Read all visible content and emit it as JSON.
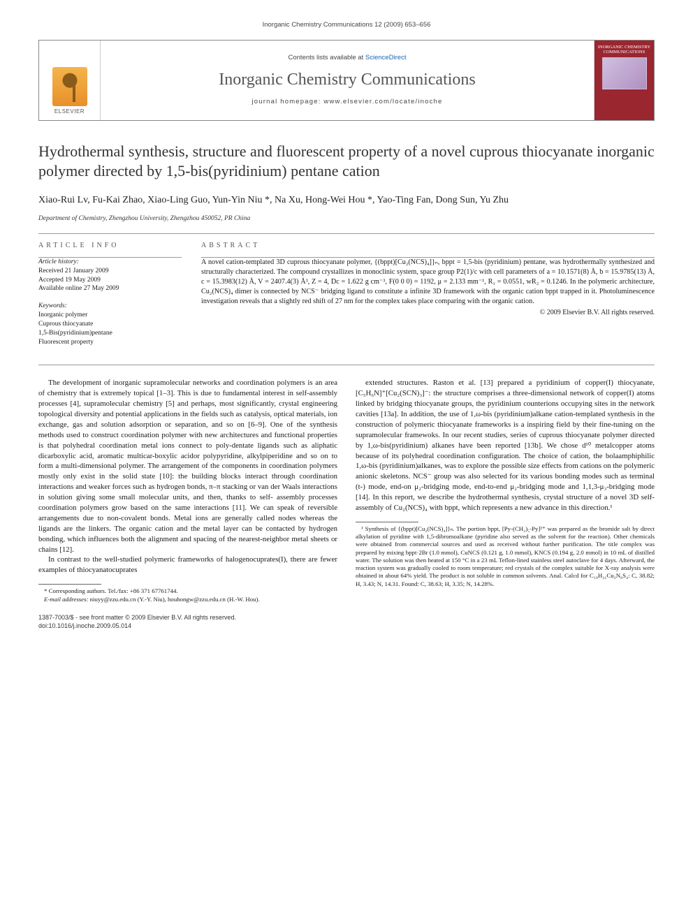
{
  "running_header": "Inorganic Chemistry Communications 12 (2009) 653–656",
  "banner": {
    "publisher": "ELSEVIER",
    "contents_prefix": "Contents lists available at ",
    "contents_link": "ScienceDirect",
    "journal": "Inorganic Chemistry Communications",
    "homepage_label": "journal homepage: www.elsevier.com/locate/inoche",
    "cover_text": "INORGANIC CHEMISTRY COMMUNICATIONS"
  },
  "title": "Hydrothermal synthesis, structure and fluorescent property of a novel cuprous thiocyanate inorganic polymer directed by 1,5-bis(pyridinium) pentane cation",
  "authors_line": "Xiao-Rui Lv, Fu-Kai Zhao, Xiao-Ling Guo, Yun-Yin Niu *, Na Xu, Hong-Wei Hou *, Yao-Ting Fan, Dong Sun, Yu Zhu",
  "affiliation": "Department of Chemistry, Zhengzhou University, Zhengzhou 450052, PR China",
  "article_info": {
    "heading": "ARTICLE INFO",
    "history_label": "Article history:",
    "received": "Received 21 January 2009",
    "accepted": "Accepted 19 May 2009",
    "online": "Available online 27 May 2009",
    "keywords_label": "Keywords:",
    "keywords": [
      "Inorganic polymer",
      "Cuprous thiocyanate",
      "1,5-Bis(pyridinium)pentane",
      "Fluorescent property"
    ]
  },
  "abstract": {
    "heading": "ABSTRACT",
    "text": "A novel cation-templated 3D cuprous thiocyanate polymer, {(bppt)[Cu₂(NCS)₄]}ₙ, bppt = 1,5-bis (pyridinium) pentane, was hydrothermally synthesized and structurally characterized. The compound crystallizes in monoclinic system, space group P2(1)/c with cell parameters of a = 10.1571(8) Å, b = 15.9785(13) Å, c = 15.3983(12) Å, V = 2407.4(3) Å³, Z = 4, Dc = 1.622 g cm⁻³, F(0 0 0) = 1192, μ = 2.133 mm⁻¹, R₁ = 0.0551, wR₂ = 0.1246. In the polymeric architecture, Cu₂(NCS)₄ dimer is connected by NCS⁻ bridging ligand to constitute a infinite 3D framework with the organic cation bppt trapped in it. Photoluminescence investigation reveals that a slightly red shift of 27 nm for the complex takes place comparing with the organic cation.",
    "copyright": "© 2009 Elsevier B.V. All rights reserved."
  },
  "body": {
    "p1": "The development of inorganic supramolecular networks and coordination polymers is an area of chemistry that is extremely topical [1–3]. This is due to fundamental interest in self-assembly processes [4], supramolecular chemistry [5] and perhaps, most significantly, crystal engineering topological diversity and potential applications in the fields such as catalysis, optical materials, ion exchange, gas and solution adsorption or separation, and so on [6–9]. One of the synthesis methods used to construct coordination polymer with new architectures and functional properties is that polyhedral coordination metal ions connect to poly-dentate ligands such as aliphatic dicarboxylic acid, aromatic multicar-boxylic acidor polypyridine, alkylpiperidine and so on to form a multi-dimensional polymer. The arrangement of the components in coordination polymers mostly only exist in the solid state [10]: the building blocks interact through coordination interactions and weaker forces such as hydrogen bonds, π–π stacking or van der Waals interactions in solution giving some small molecular units, and then, thanks to self- assembly processes coordination polymers grow based on the same interactions [11]. We can speak of reversible arrangements due to non-covalent bonds. Metal ions are generally called nodes whereas the ligands are the linkers. The organic cation and the metal layer can be contacted by hydrogen bonding, which influences both the alignment and spacing of the nearest-neighbor metal sheets or chains [12].",
    "p2": "In contrast to the well-studied polymeric frameworks of halogenocuprates(I), there are fewer examples of thiocyanatocuprates",
    "p3": "extended structures. Raston et al. [13] prepared a pyridinium of copper(I) thiocyanate, [C₅H₆N]⁺[Cu₂(SCN)₃]⁻: the structure comprises a three-dimensional network of copper(I) atoms linked by bridging thiocyanate groups, the pyridinium counterions occupying sites in the network cavities [13a]. In addition, the use of 1,ω-bis (pyridinium)alkane cation-templated synthesis in the construction of polymeric thiocyanate frameworks is a inspiring field by their fine-tuning on the supramolecular framewoks. In our recent studies, series of cuprous thiocyanate polymer directed by 1,ω-bis(pyridinium) alkanes have been reported [13b]. We chose d¹⁰ metalcopper atoms because of its polyhedral coordination configuration. The choice of cation, the bolaamphiphilic 1,ω-bis (pyridinium)alkanes, was to explore the possible size effects from cations on the polymeric anionic skeletons. NCS⁻ group was also selected for its various bonding modes such as terminal (t-) mode, end-on μ₂-bridging mode, end-to-end μ₂-bridging mode and 1,1,3-μ₃-bridging mode [14]. In this report, we describe the hydrothermal synthesis, crystal structure of a novel 3D self-assembly of Cu₂(NCS)₄ with bppt, which represents a new advance in this direction.¹"
  },
  "footnotes": {
    "corr_line": "* Corresponding authors. Tel./fax: +86 371 67761744.",
    "email_label": "E-mail addresses:",
    "email_text": " niuyy@zzu.edu.cn (Y.-Y. Niu), houhongw@zzu.edu.cn (H.-W. Hou).",
    "fn1": "¹ Synthesis of {(bppt)[Cu₂(NCS)₄]}ₙ. The portion bppt, [Py-(CH₂)₅-Py]²⁺ was prepared as the bromide salt by direct alkylation of pyridine with 1,5-dibromoalkane (pyridine also served as the solvent for the reaction). Other chemicals were obtained from commercial sources and used as received without further purification. The title complex was prepared by mixing bppt·2Br (1.0 mmol), CuNCS (0.121 g, 1.0 mmol), KNCS (0.194 g, 2.0 mmol) in 10 mL of distilled water. The solution was then heated at 150 °C in a 23 mL Teflon-lined stainless steel autoclave for 4 days. Afterward, the reaction system was gradually cooled to room temperature; red crystals of the complex suitable for X-ray analysis were obtained in about 64% yield. The product is not soluble in common solvents. Anal. Calcd for C₁₉H₂₁Cu₂N₆S₄: C, 38.82; H, 3.43; N, 14.31. Found: C, 38.63; H, 3.35; N, 14.28%."
  },
  "bottom": {
    "left1": "1387-7003/$ - see front matter © 2009 Elsevier B.V. All rights reserved.",
    "left2": "doi:10.1016/j.inoche.2009.05.014"
  },
  "colors": {
    "link": "#1864b2",
    "text": "#1a1a1a",
    "rule": "#999999",
    "cover_bg": "#9a2630"
  }
}
